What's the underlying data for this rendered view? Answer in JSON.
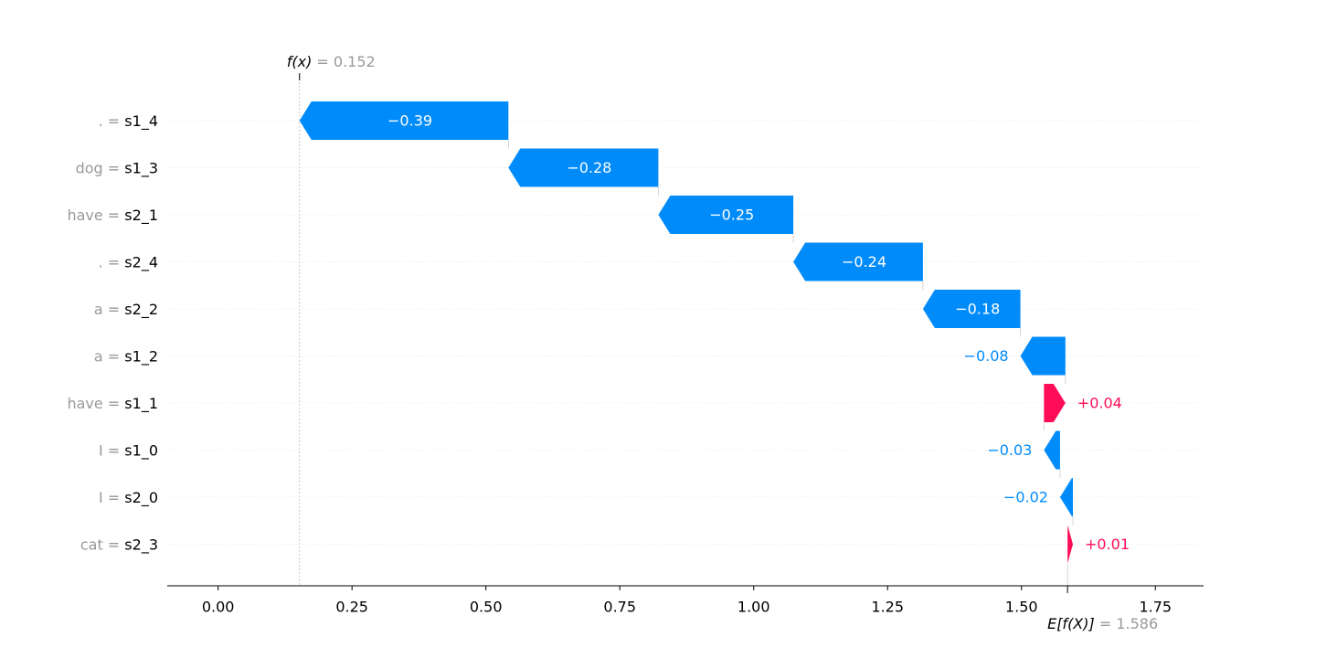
{
  "chart_data": {
    "type": "waterfall",
    "title": "",
    "xlabel": "",
    "ylabel": "",
    "xlim": [
      -0.095,
      1.84
    ],
    "xticks": [
      {
        "value": 0.0,
        "label": "0.00"
      },
      {
        "value": 0.25,
        "label": "0.25"
      },
      {
        "value": 0.5,
        "label": "0.50"
      },
      {
        "value": 0.75,
        "label": "0.75"
      },
      {
        "value": 1.0,
        "label": "1.00"
      },
      {
        "value": 1.25,
        "label": "1.25"
      },
      {
        "value": 1.5,
        "label": "1.50"
      },
      {
        "value": 1.75,
        "label": "1.75"
      }
    ],
    "base_value": 1.586,
    "base_label": "E[f(X)]",
    "base_value_text": "= 1.586",
    "output_value": 0.152,
    "output_label": "f(x)",
    "output_value_text": "= 0.152",
    "grid": "horizontal dotted",
    "colors": {
      "positive": "#ff0d57",
      "negative": "#008bfb"
    },
    "features": [
      {
        "feature": ".",
        "eq": " = ",
        "value": "s1_4",
        "contribution": -0.39,
        "label": "−0.39",
        "start": 0.542,
        "end": 0.152
      },
      {
        "feature": "dog",
        "eq": " = ",
        "value": "s1_3",
        "contribution": -0.28,
        "label": "−0.28",
        "start": 0.822,
        "end": 0.542
      },
      {
        "feature": "have",
        "eq": " = ",
        "value": "s2_1",
        "contribution": -0.25,
        "label": "−0.25",
        "start": 1.074,
        "end": 0.822
      },
      {
        "feature": ".",
        "eq": " = ",
        "value": "s2_4",
        "contribution": -0.24,
        "label": "−0.24",
        "start": 1.316,
        "end": 1.074
      },
      {
        "feature": "a",
        "eq": " = ",
        "value": "s2_2",
        "contribution": -0.18,
        "label": "−0.18",
        "start": 1.498,
        "end": 1.316
      },
      {
        "feature": "a",
        "eq": " = ",
        "value": "s1_2",
        "contribution": -0.08,
        "label": "−0.08",
        "start": 1.582,
        "end": 1.498
      },
      {
        "feature": "have",
        "eq": " = ",
        "value": "s1_1",
        "contribution": 0.04,
        "label": "+0.04",
        "start": 1.542,
        "end": 1.582
      },
      {
        "feature": "I",
        "eq": " = ",
        "value": "s1_0",
        "contribution": -0.03,
        "label": "−0.03",
        "start": 1.572,
        "end": 1.542
      },
      {
        "feature": "I",
        "eq": " = ",
        "value": "s2_0",
        "contribution": -0.02,
        "label": "−0.02",
        "start": 1.596,
        "end": 1.572
      },
      {
        "feature": "cat",
        "eq": " = ",
        "value": "s2_3",
        "contribution": 0.01,
        "label": "+0.01",
        "start": 1.586,
        "end": 1.596
      }
    ]
  }
}
